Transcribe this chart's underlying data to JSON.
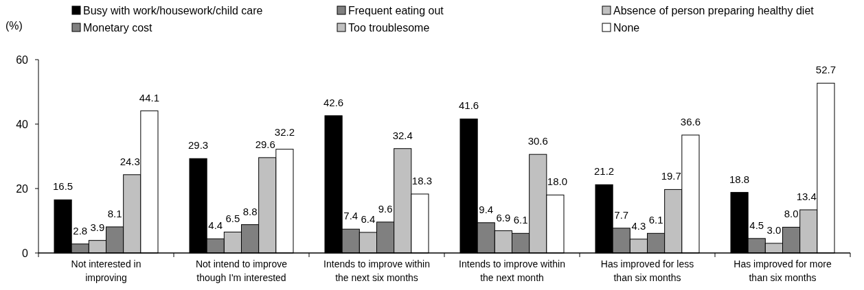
{
  "chart_data": {
    "type": "bar",
    "ylabel": "(%)",
    "categories": [
      "Not interested in improving",
      "Not intend to improve though I'm interested",
      "Intends to improve within the next six months",
      "Intends to improve within the next month",
      "Has improved for less than six months",
      "Has improved for more than six months"
    ],
    "series": [
      {
        "name": "Busy with work/housework/child care",
        "color": "#000000",
        "values": [
          16.5,
          29.3,
          42.6,
          41.6,
          21.2,
          18.8
        ],
        "value_labels": [
          "16.5",
          "29.3",
          "42.6",
          "41.6",
          "21.2",
          "18.8"
        ]
      },
      {
        "name": "Frequent eating out",
        "color": "#808080",
        "values": [
          2.8,
          4.4,
          7.4,
          9.4,
          7.7,
          4.5
        ],
        "value_labels": [
          "2.8",
          "4.4",
          "7.4",
          "9.4",
          "7.7",
          "4.5"
        ]
      },
      {
        "name": "Absence of person preparing healthy diet",
        "color": "#c0c0c0",
        "values": [
          3.9,
          6.5,
          6.4,
          6.9,
          4.3,
          3.0
        ],
        "value_labels": [
          "3.9",
          "6.5",
          "6.4",
          "6.9",
          "4.3",
          "3.0"
        ]
      },
      {
        "name": "Monetary cost",
        "color": "#808080",
        "values": [
          8.1,
          8.8,
          9.6,
          6.1,
          6.1,
          8.0
        ],
        "value_labels": [
          "8.1",
          "8.8",
          "9.6",
          "6.1",
          "6.1",
          "8.0"
        ]
      },
      {
        "name": "Too troublesome",
        "color": "#c0c0c0",
        "values": [
          24.3,
          29.6,
          32.4,
          30.6,
          19.7,
          13.4
        ],
        "value_labels": [
          "24.3",
          "29.6",
          "32.4",
          "30.6",
          "19.7",
          "13.4"
        ]
      },
      {
        "name": "None",
        "color": "#ffffff",
        "values": [
          44.1,
          32.2,
          18.3,
          18.0,
          36.6,
          52.7
        ],
        "value_labels": [
          "44.1",
          "32.2",
          "18.3",
          "18.0",
          "36.6",
          "52.7"
        ]
      }
    ],
    "ylim": [
      0,
      60
    ],
    "yticks": [
      0,
      20,
      40,
      60
    ],
    "legend": "top"
  }
}
